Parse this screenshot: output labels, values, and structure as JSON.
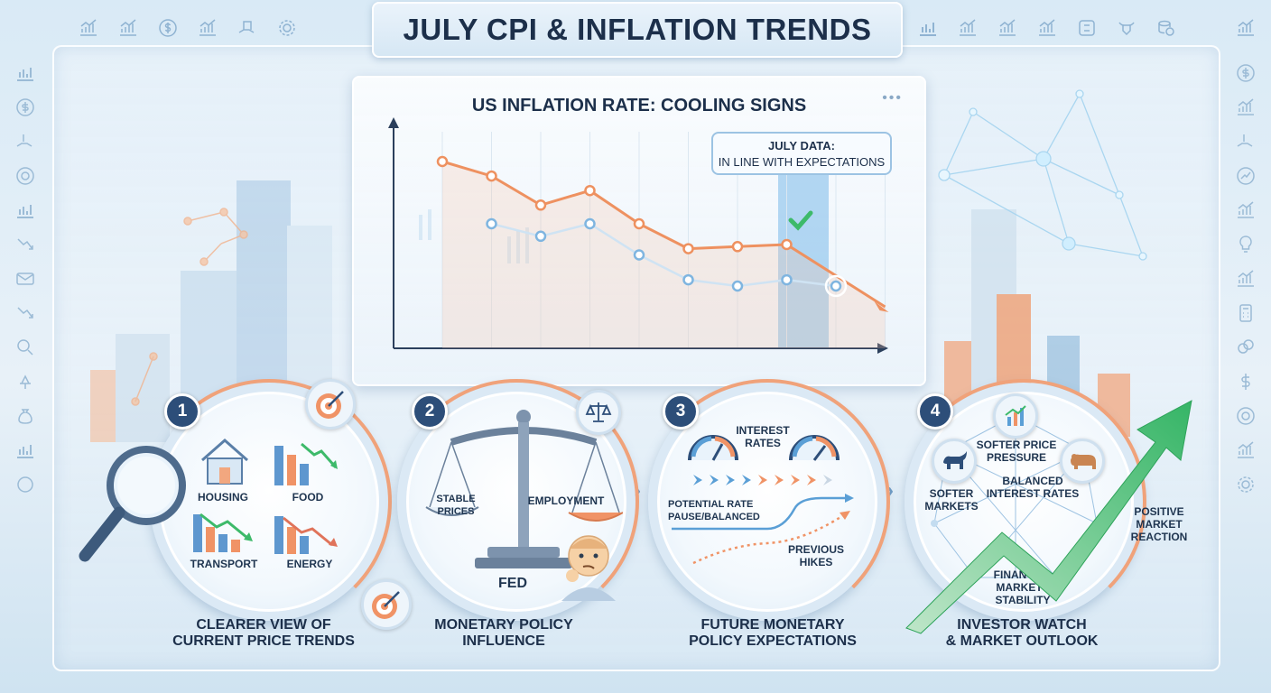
{
  "title": "JULY CPI & INFLATION TRENDS",
  "chart": {
    "title": "US INFLATION RATE: COOLING SIGNS",
    "callout_line1": "JULY DATA:",
    "callout_line2": "IN LINE WITH EXPECTATIONS",
    "more_icon": "ellipsis-icon"
  },
  "chart_data": {
    "type": "line",
    "title": "US INFLATION RATE: COOLING SIGNS",
    "x": [
      1,
      2,
      3,
      4,
      5,
      6,
      7,
      8,
      9,
      10
    ],
    "series": [
      {
        "values": [
          9.0,
          8.3,
          6.9,
          7.6,
          6.0,
          4.8,
          4.9,
          5.0,
          null,
          2.0
        ],
        "color": "#ee9160"
      },
      {
        "values": [
          null,
          6.0,
          5.4,
          6.0,
          4.5,
          3.3,
          3.0,
          3.3,
          3.0,
          null
        ],
        "color": "#cfe3f3"
      }
    ],
    "annotation": "JULY DATA: IN LINE WITH EXPECTATIONS",
    "grid": true
  },
  "steps": [
    {
      "num": "1",
      "labels": {
        "housing": "HOUSING",
        "food": "FOOD",
        "transport": "TRANSPORT",
        "energy": "ENERGY"
      },
      "caption_line1": "CLEARER VIEW OF",
      "caption_line2": "CURRENT PRICE TRENDS"
    },
    {
      "num": "2",
      "labels": {
        "stable1": "STABLE",
        "stable2": "PRICES",
        "employment": "EMPLOYMENT",
        "fed": "FED"
      },
      "caption_line1": "MONETARY POLICY",
      "caption_line2": "INFLUENCE"
    },
    {
      "num": "3",
      "labels": {
        "interest1": "INTEREST",
        "interest2": "RATES",
        "pause1": "POTENTIAL RATE",
        "pause2": "PAUSE/BALANCED",
        "prev1": "PREVIOUS",
        "prev2": "HIKES"
      },
      "caption_line1": "FUTURE MONETARY",
      "caption_line2": "POLICY EXPECTATIONS"
    },
    {
      "num": "4",
      "labels": {
        "softer_price1": "SOFTER PRICE",
        "softer_price2": "PRESSURE",
        "balanced1": "BALANCED",
        "balanced2": "INTEREST RATES",
        "softer_markets1": "SOFTER",
        "softer_markets2": "MARKETS",
        "stability1": "FINANCIAL MARKETS",
        "stability2": "STABILITY"
      },
      "caption_line1": "INVESTOR WATCH",
      "caption_line2": "& MARKET OUTLOOK"
    }
  ],
  "positive": {
    "line1": "POSITIVE",
    "line2": "MARKET",
    "line3": "REACTION"
  },
  "colors": {
    "orange": "#ee9160",
    "navy": "#2d4e79",
    "blue": "#5a9fd6",
    "green": "#3dba6a"
  }
}
